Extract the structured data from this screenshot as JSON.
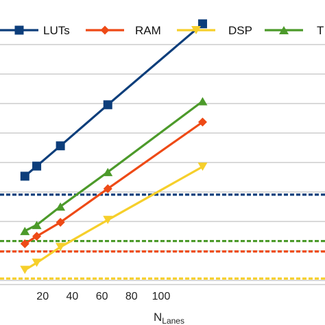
{
  "chart_data": {
    "type": "line",
    "xlabel": "N",
    "xlabel_subscript": "Lanes",
    "xlim": [
      0,
      128
    ],
    "ylim": [
      0,
      100
    ],
    "x_ticks": [
      20,
      40,
      60,
      80,
      100
    ],
    "x_tick_labels": [
      "20",
      "40",
      "60",
      "80",
      "100"
    ],
    "grid": true,
    "legend_position": "top",
    "series": [
      {
        "name": "LUTs",
        "color": "#0d3e7b",
        "marker": "square",
        "x": [
          8,
          16,
          32,
          64,
          128
        ],
        "y": [
          34.8,
          38.2,
          45.0,
          58.8,
          86.0
        ]
      },
      {
        "name": "RAM",
        "color": "#ee4a16",
        "marker": "diamond",
        "x": [
          8,
          16,
          32,
          64,
          128
        ],
        "y": [
          12.1,
          14.6,
          19.3,
          30.6,
          53.0
        ]
      },
      {
        "name": "DSP",
        "color": "#f6cf2b",
        "marker": "triangle-down",
        "x": [
          8,
          16,
          32,
          64,
          128
        ],
        "y": [
          3.3,
          5.7,
          11.0,
          20.1,
          38.0
        ]
      },
      {
        "name": "T",
        "color": "#4c9a2a",
        "marker": "triangle-up",
        "x": [
          8,
          16,
          32,
          64,
          128
        ],
        "y": [
          16.4,
          18.4,
          24.6,
          36.2,
          60.0
        ]
      }
    ],
    "reference_lines": [
      {
        "color": "#0d3e7b",
        "y": 28.6
      },
      {
        "color": "#4c9a2a",
        "y": 13.0
      },
      {
        "color": "#ee4a16",
        "y": 9.5
      },
      {
        "color": "#f6cf2b",
        "y": 0.4
      }
    ]
  }
}
